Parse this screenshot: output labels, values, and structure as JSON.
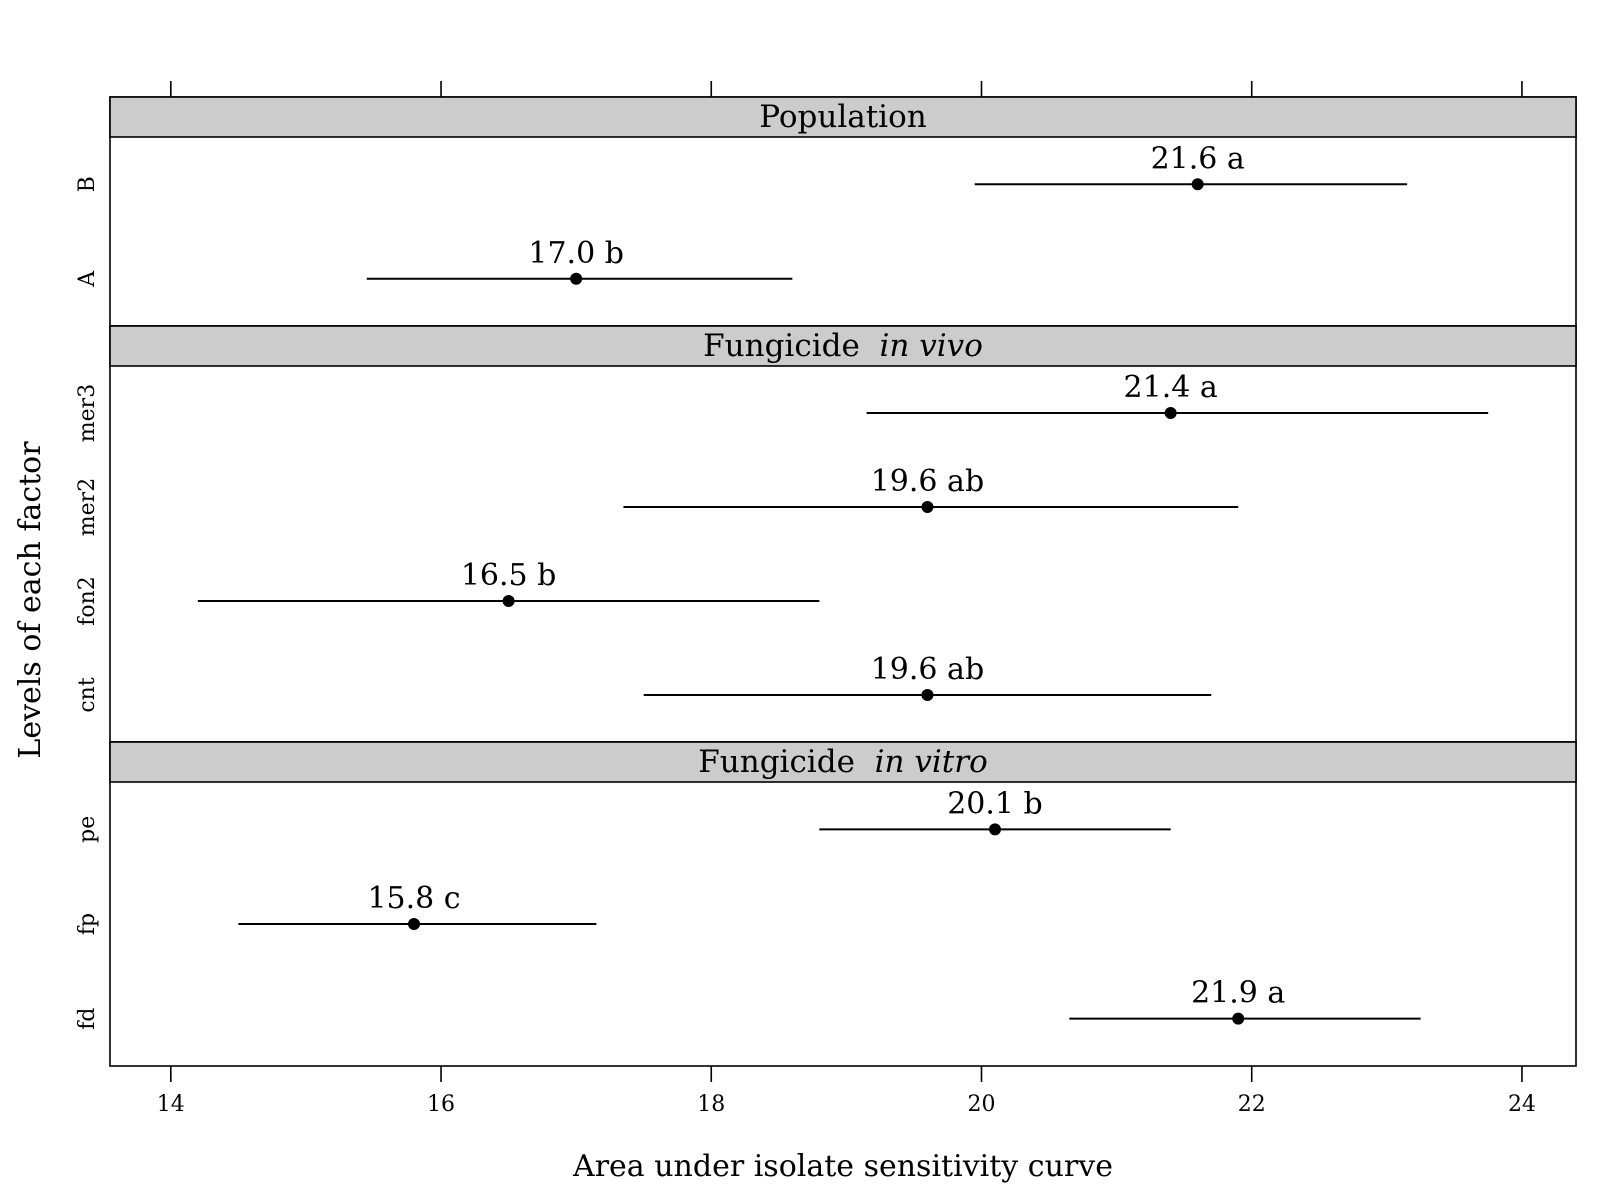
{
  "chart_data": {
    "type": "dot-interval",
    "xlabel": "Area under isolate sensitivity curve",
    "ylabel": "Levels of each factor",
    "xlim": [
      13.55,
      24.4
    ],
    "xticks": [
      14,
      16,
      18,
      20,
      22,
      24
    ],
    "panels": [
      {
        "title_parts": [
          {
            "text": "Population",
            "italic": false
          }
        ],
        "levels": [
          {
            "label": "A",
            "value": 17.0,
            "lower": 15.45,
            "upper": 18.6,
            "annotation": "17.0 b"
          },
          {
            "label": "B",
            "value": 21.6,
            "lower": 19.95,
            "upper": 23.15,
            "annotation": "21.6 a"
          }
        ]
      },
      {
        "title_parts": [
          {
            "text": "Fungicide",
            "italic": false
          },
          {
            "text": "in vivo",
            "italic": true
          }
        ],
        "levels": [
          {
            "label": "cnt",
            "value": 19.6,
            "lower": 17.5,
            "upper": 21.7,
            "annotation": "19.6 ab"
          },
          {
            "label": "fon2",
            "value": 16.5,
            "lower": 14.2,
            "upper": 18.8,
            "annotation": "16.5 b"
          },
          {
            "label": "mer2",
            "value": 19.6,
            "lower": 17.35,
            "upper": 21.9,
            "annotation": "19.6 ab"
          },
          {
            "label": "mer3",
            "value": 21.4,
            "lower": 19.15,
            "upper": 23.75,
            "annotation": "21.4 a"
          }
        ]
      },
      {
        "title_parts": [
          {
            "text": "Fungicide",
            "italic": false
          },
          {
            "text": "in vitro",
            "italic": true
          }
        ],
        "levels": [
          {
            "label": "fd",
            "value": 21.9,
            "lower": 20.65,
            "upper": 23.25,
            "annotation": "21.9 a"
          },
          {
            "label": "fp",
            "value": 15.8,
            "lower": 14.5,
            "upper": 17.15,
            "annotation": "15.8 c"
          },
          {
            "label": "pe",
            "value": 20.1,
            "lower": 18.8,
            "upper": 21.4,
            "annotation": "20.1 b"
          }
        ]
      }
    ]
  }
}
